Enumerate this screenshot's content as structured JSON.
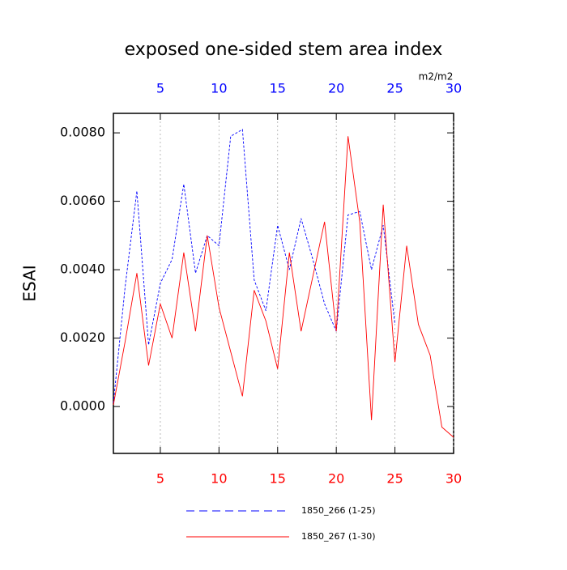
{
  "chart_data": {
    "type": "line",
    "title": "exposed one-sided stem area index",
    "y_label": "ESAI",
    "x2_units": "m2/m2",
    "xlim": [
      1,
      30
    ],
    "xticks": [
      5,
      10,
      15,
      20,
      25,
      30
    ],
    "xtick_color": "#ff0000",
    "x2lim": [
      1,
      30
    ],
    "x2ticks": [
      5,
      10,
      15,
      20,
      25,
      30
    ],
    "x2tick_color": "#0000ff",
    "ylim": [
      -0.00137,
      0.00857
    ],
    "yticks": [
      {
        "value": 0,
        "label": "0.0000"
      },
      {
        "value": 0.002,
        "label": "0.0020"
      },
      {
        "value": 0.004,
        "label": "0.0040"
      },
      {
        "value": 0.006,
        "label": "0.0060"
      },
      {
        "value": 0.008,
        "label": "0.0080"
      }
    ],
    "grid": "x",
    "legend": "bottom",
    "series": [
      {
        "name": "1850_266 (1-25)",
        "color": "#0000ff",
        "line_style": "dashed",
        "xaxis": "x2",
        "x": [
          1,
          2,
          3,
          4,
          5,
          6,
          7,
          8,
          9,
          10,
          11,
          12,
          13,
          14,
          15,
          16,
          17,
          18,
          19,
          20,
          21,
          22,
          23,
          24,
          25
        ],
        "values": [
          0.0001,
          0.0035,
          0.0063,
          0.0018,
          0.0036,
          0.0043,
          0.0065,
          0.0039,
          0.005,
          0.0047,
          0.0079,
          0.0081,
          0.0037,
          0.0028,
          0.0053,
          0.004,
          0.0055,
          0.0043,
          0.003,
          0.0022,
          0.0056,
          0.0057,
          0.004,
          0.0053,
          0.0024
        ]
      },
      {
        "name": "1850_267 (1-30)",
        "color": "#ff0000",
        "line_style": "solid",
        "xaxis": "x",
        "x": [
          1,
          2,
          3,
          4,
          5,
          6,
          7,
          8,
          9,
          10,
          11,
          12,
          13,
          14,
          15,
          16,
          17,
          18,
          19,
          20,
          21,
          22,
          23,
          24,
          25,
          26,
          27,
          28,
          29,
          30
        ],
        "values": [
          5e-05,
          0.0019,
          0.0039,
          0.0012,
          0.003,
          0.002,
          0.0045,
          0.0022,
          0.005,
          0.0029,
          0.0016,
          0.0003,
          0.0034,
          0.0025,
          0.0011,
          0.0045,
          0.0022,
          0.0038,
          0.0054,
          0.0022,
          0.0079,
          0.0054,
          -0.0004,
          0.0059,
          0.0013,
          0.0047,
          0.0024,
          0.0015,
          -0.0006,
          -0.0009
        ]
      }
    ]
  }
}
